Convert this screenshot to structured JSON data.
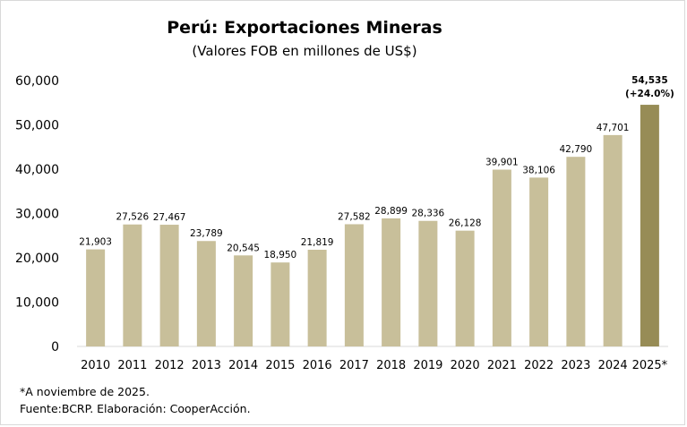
{
  "chart_data": {
    "type": "bar",
    "title": "Perú: Exportaciones Mineras",
    "subtitle": "(Valores FOB en millones de US$)",
    "categories": [
      "2010",
      "2011",
      "2012",
      "2013",
      "2014",
      "2015",
      "2016",
      "2017",
      "2018",
      "2019",
      "2020",
      "2021",
      "2022",
      "2023",
      "2024",
      "2025*"
    ],
    "values": [
      21903,
      27526,
      27467,
      23789,
      20545,
      18950,
      21819,
      27582,
      28899,
      28336,
      26128,
      39901,
      38106,
      42790,
      47701,
      54535
    ],
    "value_labels": [
      "21,903",
      "27,526",
      "27,467",
      "23,789",
      "20,545",
      "18,950",
      "21,819",
      "27,582",
      "28,899",
      "28,336",
      "26,128",
      "39,901",
      "38,106",
      "42,790",
      "47,701",
      "54,535"
    ],
    "highlight_index": 15,
    "highlight_note": "(+24.0%)",
    "xlabel": "",
    "ylabel": "",
    "ylim": [
      0,
      60000
    ],
    "yticks": [
      0,
      10000,
      20000,
      30000,
      40000,
      50000,
      60000
    ],
    "ytick_labels": [
      "0",
      "10,000",
      "20,000",
      "30,000",
      "40,000",
      "50,000",
      "60,000"
    ],
    "grid": false,
    "colors": {
      "bar": "#c8bf9a",
      "highlight": "#978c56"
    }
  },
  "footnotes": {
    "note": "*A noviembre de 2025.",
    "source": "Fuente:BCRP. Elaboración: CooperAcción."
  }
}
